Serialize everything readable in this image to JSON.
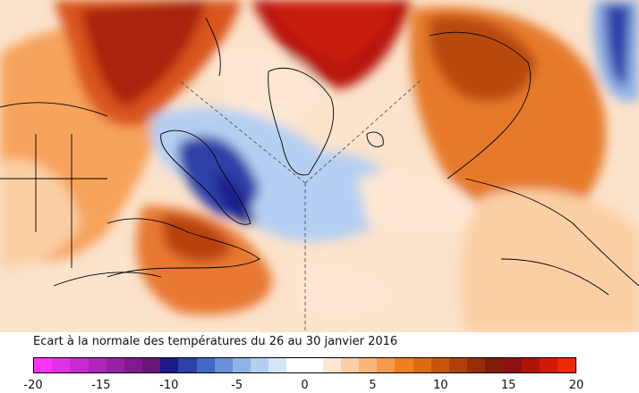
{
  "legend": {
    "title": "Ecart à la normale des températures du 26 au 30 janvier 2016",
    "ticks": [
      "-20",
      "-15",
      "-10",
      "-5",
      "0",
      "5",
      "10",
      "15",
      "20"
    ],
    "colors": [
      "#ff33ff",
      "#e030e8",
      "#c82ad2",
      "#b026bc",
      "#9820a6",
      "#801a90",
      "#681678",
      "#1a1a8c",
      "#2e3fa8",
      "#4466c4",
      "#6a8fd8",
      "#8fb2e8",
      "#b5cff2",
      "#d6e6f8",
      "#ffffff",
      "#ffffff",
      "#fde7d2",
      "#fbcfa4",
      "#f9b478",
      "#f79a4d",
      "#f07f20",
      "#e06a10",
      "#c8540a",
      "#b04008",
      "#982c06",
      "#801c04",
      "#901010",
      "#b01408",
      "#d01a06",
      "#ec2a06"
    ]
  }
}
